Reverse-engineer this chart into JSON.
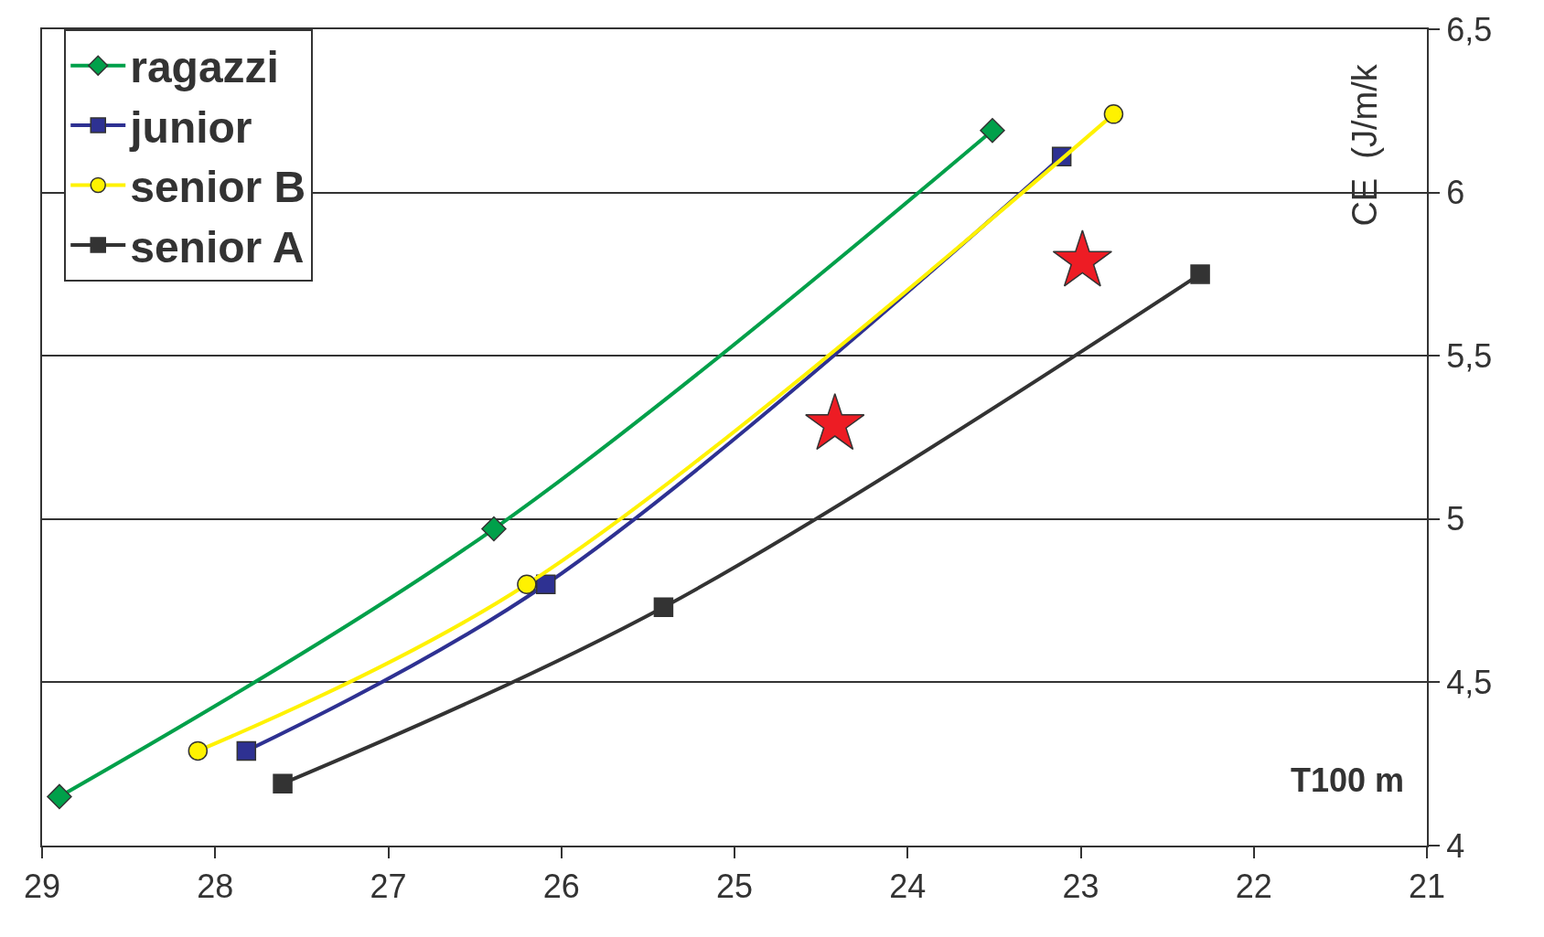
{
  "chart_data": {
    "type": "line",
    "xlabel": "T100 m",
    "ylabel": "CE  (J/m/k",
    "xlim": [
      29,
      21
    ],
    "xticks": [
      29,
      28,
      27,
      26,
      25,
      24,
      23,
      22,
      21
    ],
    "ylim": [
      4,
      6.5
    ],
    "yticks": [
      4,
      {
        "value": 4.5,
        "label": "4,5"
      },
      5,
      {
        "value": 5.5,
        "label": "5,5"
      },
      6,
      {
        "value": 6.5,
        "label": "6,5"
      }
    ],
    "grid": "y",
    "legend": "top left",
    "line_style": "solid",
    "series": [
      {
        "name": "ragazzi",
        "color": "#00a04a",
        "marker": "diamond",
        "x": [
          28.9,
          26.39,
          23.51
        ],
        "values": [
          4.15,
          4.97,
          6.19
        ]
      },
      {
        "name": "junior",
        "color": "#2e3192",
        "marker": "square",
        "x": [
          27.82,
          26.09,
          23.11
        ],
        "values": [
          4.29,
          4.8,
          6.11
        ]
      },
      {
        "name": "senior B",
        "color": "#fff200",
        "marker": "circle",
        "x": [
          28.1,
          26.2,
          22.81
        ],
        "values": [
          4.29,
          4.8,
          6.24
        ]
      },
      {
        "name": "senior A",
        "color": "#333333",
        "marker": "square",
        "x": [
          27.61,
          25.41,
          22.31
        ],
        "values": [
          4.19,
          4.73,
          5.75
        ]
      },
      {
        "type": "scatter",
        "color": "#ed1c24",
        "marker": "star",
        "x": [
          24.42,
          22.99
        ],
        "values": [
          5.29,
          5.79
        ]
      }
    ]
  }
}
